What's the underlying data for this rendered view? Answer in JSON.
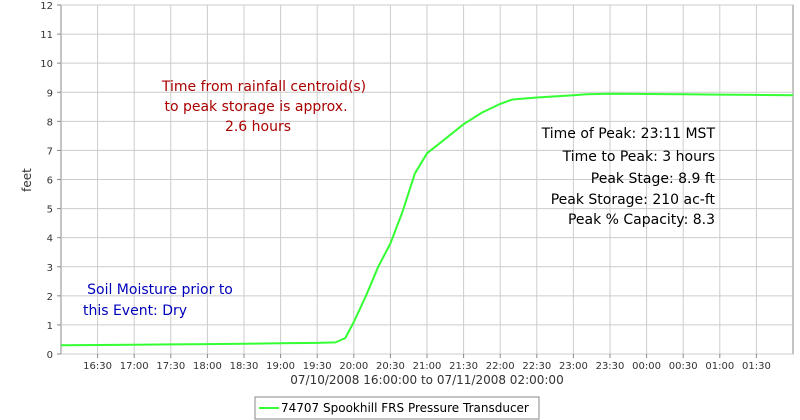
{
  "chart_data": {
    "type": "line",
    "ylabel": "feet",
    "xlabel": "07/10/2008 16:00:00 to 07/11/2008 02:00:00",
    "ylim": [
      0,
      12
    ],
    "xlim": [
      "16:00",
      "02:00"
    ],
    "yticks": [
      "0",
      "1",
      "2",
      "3",
      "4",
      "5",
      "6",
      "7",
      "8",
      "9",
      "10",
      "11",
      "12"
    ],
    "xticks": [
      "16:30",
      "17:00",
      "17:30",
      "18:00",
      "18:30",
      "19:00",
      "19:30",
      "20:00",
      "20:30",
      "21:00",
      "21:30",
      "22:00",
      "22:30",
      "23:00",
      "23:30",
      "00:00",
      "00:30",
      "01:00",
      "01:30"
    ],
    "grid": true,
    "legend_position": "bottom",
    "series": [
      {
        "name": "74707 Spookhill FRS Pressure Transducer",
        "color": "#33ff33",
        "points": [
          [
            "16:00",
            0.3
          ],
          [
            "16:30",
            0.31
          ],
          [
            "17:00",
            0.32
          ],
          [
            "17:30",
            0.33
          ],
          [
            "18:00",
            0.34
          ],
          [
            "18:30",
            0.35
          ],
          [
            "19:00",
            0.37
          ],
          [
            "19:30",
            0.38
          ],
          [
            "19:45",
            0.4
          ],
          [
            "19:53",
            0.55
          ],
          [
            "20:00",
            1.1
          ],
          [
            "20:10",
            2.0
          ],
          [
            "20:20",
            3.0
          ],
          [
            "20:30",
            3.8
          ],
          [
            "20:40",
            4.9
          ],
          [
            "20:50",
            6.2
          ],
          [
            "21:00",
            6.9
          ],
          [
            "21:15",
            7.4
          ],
          [
            "21:30",
            7.9
          ],
          [
            "21:45",
            8.3
          ],
          [
            "22:00",
            8.6
          ],
          [
            "22:10",
            8.75
          ],
          [
            "22:30",
            8.82
          ],
          [
            "23:00",
            8.9
          ],
          [
            "23:11",
            8.93
          ],
          [
            "23:30",
            8.95
          ],
          [
            "00:00",
            8.94
          ],
          [
            "00:30",
            8.93
          ],
          [
            "01:00",
            8.92
          ],
          [
            "01:30",
            8.91
          ],
          [
            "02:00",
            8.9
          ]
        ]
      }
    ],
    "annotations": {
      "rainfall": [
        "Time from rainfall centroid(s)",
        "to peak storage is approx.",
        "2.6 hours"
      ],
      "peak": [
        "Time of Peak: 23:11 MST",
        "Time to Peak: 3 hours",
        "Peak Stage: 8.9 ft",
        "Peak Storage: 210 ac-ft",
        "Peak % Capacity: 8.3"
      ],
      "soil": [
        "Soil Moisture prior to",
        "this Event: Dry"
      ]
    },
    "annotation_colors": {
      "rainfall": "#aa0000",
      "peak": "#000000",
      "soil": "#0000bb"
    }
  }
}
